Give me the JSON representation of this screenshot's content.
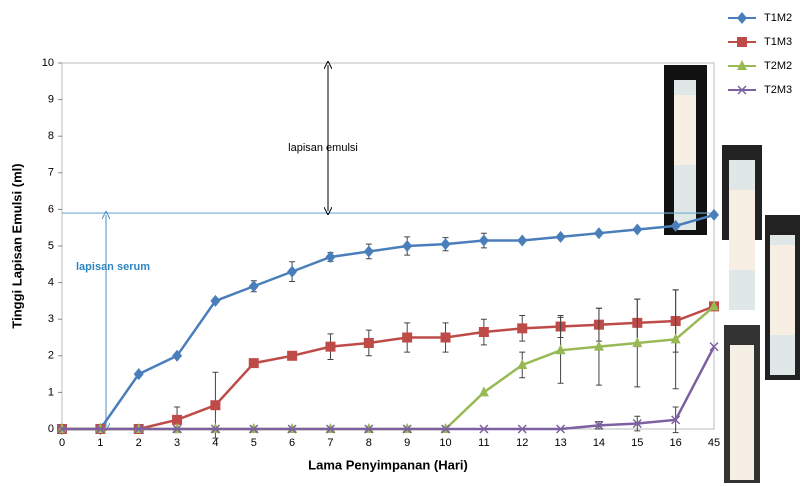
{
  "chart_data": {
    "type": "line",
    "x_label": "Lama Penyimpanan (Hari)",
    "y_label": "Tinggi Lapisan Emulsi (ml)",
    "categories": [
      "0",
      "1",
      "2",
      "3",
      "4",
      "5",
      "6",
      "7",
      "8",
      "9",
      "10",
      "11",
      "12",
      "13",
      "14",
      "15",
      "16",
      "45"
    ],
    "ylim": [
      0,
      10
    ],
    "yticks": [
      0,
      1,
      2,
      3,
      4,
      5,
      6,
      7,
      8,
      9,
      10
    ],
    "legend": "top-right",
    "series": [
      {
        "name": "T1M2",
        "color": "#4a7ebb",
        "marker": "diamond",
        "values": [
          0,
          0,
          1.5,
          2,
          3.5,
          3.9,
          4.3,
          4.7,
          4.85,
          5,
          5.05,
          5.15,
          5.15,
          5.25,
          5.35,
          5.45,
          5.55,
          5.85
        ],
        "errors": [
          0,
          0,
          0,
          0,
          0,
          0.15,
          0.27,
          0.12,
          0.2,
          0.25,
          0.18,
          0.2,
          0,
          0,
          0,
          0,
          0,
          0
        ]
      },
      {
        "name": "T1M3",
        "color": "#be4b48",
        "marker": "square",
        "values": [
          0,
          0,
          0,
          0.25,
          0.65,
          1.8,
          2,
          2.25,
          2.35,
          2.5,
          2.5,
          2.65,
          2.75,
          2.8,
          2.85,
          2.9,
          2.95,
          3.35
        ],
        "errors": [
          0,
          0,
          0,
          0.35,
          0.9,
          0,
          0,
          0.35,
          0.35,
          0.4,
          0.4,
          0.35,
          0.35,
          0.3,
          0.45,
          0.65,
          0.85,
          0
        ]
      },
      {
        "name": "T2M2",
        "color": "#98b954",
        "marker": "triangle",
        "values": [
          0,
          0,
          0,
          0,
          0,
          0,
          0,
          0,
          0,
          0,
          0,
          1,
          1.75,
          2.15,
          2.25,
          2.35,
          2.45,
          3.35
        ],
        "errors": [
          0,
          0,
          0,
          0,
          0,
          0,
          0,
          0,
          0,
          0,
          0,
          0,
          0.35,
          0.9,
          1.05,
          1.2,
          1.35,
          0
        ]
      },
      {
        "name": "T2M3",
        "color": "#7d60a0",
        "marker": "x",
        "values": [
          0,
          0,
          0,
          0,
          0,
          0,
          0,
          0,
          0,
          0,
          0,
          0,
          0,
          0,
          0.1,
          0.15,
          0.25,
          2.25
        ],
        "errors": [
          0,
          0,
          0,
          0,
          0,
          0,
          0,
          0,
          0,
          0,
          0,
          0,
          0,
          0,
          0.1,
          0.2,
          0.35,
          0
        ]
      }
    ],
    "reference_y": 5.9,
    "annotations": [
      "lapisan emulsi",
      "lapisan serum"
    ]
  }
}
